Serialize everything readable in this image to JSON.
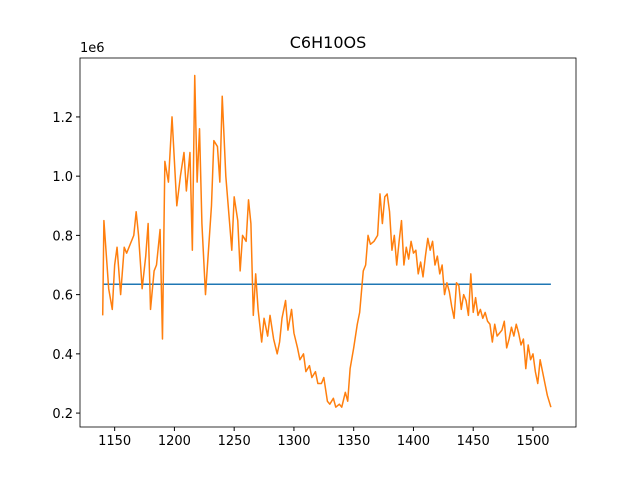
{
  "chart_data": {
    "type": "line",
    "title": "C6H10OS",
    "y_offset_label": "1e6",
    "xlim": [
      1121,
      1536
    ],
    "ylim": [
      0.153,
      1.399
    ],
    "xticks": [
      1150,
      1200,
      1250,
      1300,
      1350,
      1400,
      1450,
      1500
    ],
    "yticks": [
      0.2,
      0.4,
      0.6,
      0.8,
      {
        "value": 1,
        "label": "1.0"
      },
      1.2
    ],
    "series": [
      {
        "color": "#1f77b4",
        "x": [
          1140,
          1515
        ],
        "values": [
          0.635,
          0.635
        ]
      },
      {
        "color": "#ff7f0e",
        "x": [
          1140,
          1141,
          1145,
          1148,
          1150,
          1152,
          1155,
          1158,
          1160,
          1163,
          1166,
          1168,
          1170,
          1173,
          1176,
          1178,
          1180,
          1183,
          1185,
          1188,
          1190,
          1192,
          1195,
          1198,
          1200,
          1202,
          1205,
          1208,
          1210,
          1213,
          1215,
          1217,
          1219,
          1221,
          1223,
          1226,
          1229,
          1231,
          1233,
          1236,
          1238,
          1240,
          1243,
          1246,
          1248,
          1250,
          1253,
          1255,
          1257,
          1260,
          1262,
          1264,
          1266,
          1268,
          1270,
          1273,
          1275,
          1278,
          1280,
          1283,
          1286,
          1288,
          1290,
          1293,
          1295,
          1298,
          1300,
          1303,
          1305,
          1308,
          1310,
          1313,
          1315,
          1318,
          1320,
          1323,
          1325,
          1328,
          1330,
          1333,
          1335,
          1338,
          1340,
          1343,
          1345,
          1347,
          1350,
          1353,
          1355,
          1358,
          1360,
          1362,
          1364,
          1367,
          1370,
          1372,
          1374,
          1376,
          1378,
          1380,
          1382,
          1384,
          1386,
          1388,
          1390,
          1392,
          1394,
          1396,
          1398,
          1400,
          1402,
          1404,
          1406,
          1408,
          1410,
          1412,
          1414,
          1416,
          1418,
          1420,
          1422,
          1424,
          1426,
          1428,
          1430,
          1432,
          1434,
          1436,
          1438,
          1440,
          1442,
          1444,
          1446,
          1448,
          1450,
          1452,
          1454,
          1456,
          1458,
          1460,
          1462,
          1464,
          1466,
          1468,
          1470,
          1472,
          1474,
          1476,
          1478,
          1480,
          1482,
          1484,
          1486,
          1488,
          1490,
          1492,
          1494,
          1496,
          1498,
          1500,
          1502,
          1504,
          1506,
          1508,
          1510,
          1512,
          1515
        ],
        "values": [
          0.53,
          0.85,
          0.62,
          0.55,
          0.7,
          0.76,
          0.6,
          0.76,
          0.74,
          0.77,
          0.8,
          0.88,
          0.8,
          0.62,
          0.73,
          0.84,
          0.55,
          0.68,
          0.7,
          0.82,
          0.45,
          1.05,
          0.98,
          1.2,
          1.05,
          0.9,
          1.0,
          1.08,
          0.95,
          1.08,
          0.75,
          1.34,
          0.98,
          1.16,
          0.84,
          0.6,
          0.78,
          0.9,
          1.12,
          1.1,
          0.98,
          1.27,
          1.0,
          0.85,
          0.75,
          0.93,
          0.85,
          0.68,
          0.8,
          0.78,
          0.92,
          0.84,
          0.53,
          0.67,
          0.55,
          0.44,
          0.52,
          0.46,
          0.53,
          0.45,
          0.4,
          0.44,
          0.52,
          0.58,
          0.48,
          0.55,
          0.47,
          0.42,
          0.38,
          0.4,
          0.34,
          0.36,
          0.32,
          0.34,
          0.3,
          0.3,
          0.32,
          0.24,
          0.23,
          0.25,
          0.22,
          0.23,
          0.22,
          0.27,
          0.24,
          0.35,
          0.42,
          0.5,
          0.54,
          0.68,
          0.7,
          0.8,
          0.77,
          0.78,
          0.8,
          0.94,
          0.84,
          0.93,
          0.94,
          0.88,
          0.75,
          0.8,
          0.7,
          0.78,
          0.85,
          0.7,
          0.76,
          0.72,
          0.78,
          0.74,
          0.75,
          0.67,
          0.71,
          0.66,
          0.73,
          0.79,
          0.75,
          0.78,
          0.7,
          0.73,
          0.67,
          0.7,
          0.6,
          0.64,
          0.61,
          0.56,
          0.52,
          0.64,
          0.63,
          0.55,
          0.6,
          0.58,
          0.53,
          0.67,
          0.54,
          0.59,
          0.53,
          0.55,
          0.52,
          0.54,
          0.51,
          0.5,
          0.44,
          0.5,
          0.46,
          0.47,
          0.48,
          0.51,
          0.42,
          0.45,
          0.49,
          0.46,
          0.5,
          0.47,
          0.43,
          0.45,
          0.35,
          0.43,
          0.38,
          0.4,
          0.34,
          0.3,
          0.38,
          0.34,
          0.3,
          0.26,
          0.22
        ]
      }
    ]
  }
}
